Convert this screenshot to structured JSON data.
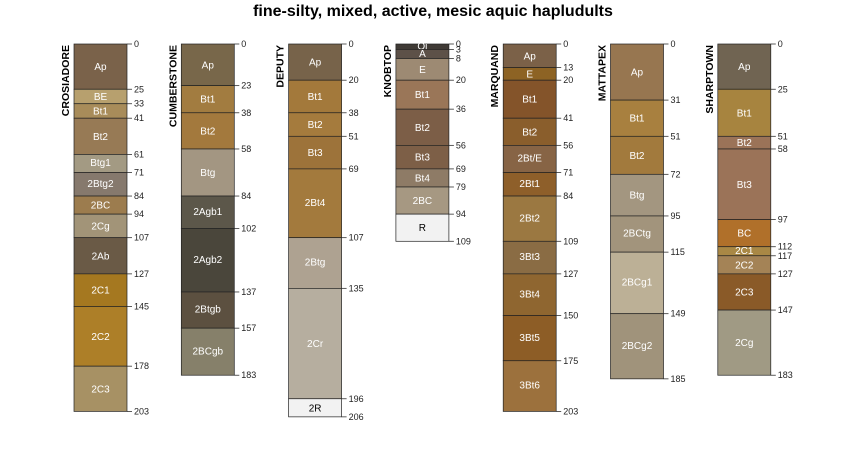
{
  "title": "fine-silty, mixed, active, mesic aquic hapludults",
  "chart_data": {
    "type": "soil-profile-sketch",
    "title": "fine-silty, mixed, active, mesic aquic hapludults",
    "depth_units": "cm",
    "profiles": [
      {
        "name": "CROSIADORE",
        "horizons": [
          {
            "name": "Ap",
            "top": 0,
            "bottom": 25,
            "color": "#7a624a"
          },
          {
            "name": "BE",
            "top": 25,
            "bottom": 33,
            "color": "#b7a06e"
          },
          {
            "name": "Bt1",
            "top": 33,
            "bottom": 41,
            "color": "#a88c5a"
          },
          {
            "name": "Bt2",
            "top": 41,
            "bottom": 61,
            "color": "#977a55"
          },
          {
            "name": "Btg1",
            "top": 61,
            "bottom": 71,
            "color": "#a39a83"
          },
          {
            "name": "2Btg2",
            "top": 71,
            "bottom": 84,
            "color": "#86796d"
          },
          {
            "name": "2BC",
            "top": 84,
            "bottom": 94,
            "color": "#9c7c4e"
          },
          {
            "name": "2Cg",
            "top": 94,
            "bottom": 107,
            "color": "#a29478"
          },
          {
            "name": "2Ab",
            "top": 107,
            "bottom": 127,
            "color": "#6a5a46"
          },
          {
            "name": "2C1",
            "top": 127,
            "bottom": 145,
            "color": "#a57820"
          },
          {
            "name": "2C2",
            "top": 145,
            "bottom": 178,
            "color": "#ad7f28"
          },
          {
            "name": "2C3",
            "top": 178,
            "bottom": 203,
            "color": "#a79164"
          }
        ]
      },
      {
        "name": "CUMBERSTONE",
        "horizons": [
          {
            "name": "Ap",
            "top": 0,
            "bottom": 23,
            "color": "#78674a"
          },
          {
            "name": "Bt1",
            "top": 23,
            "bottom": 38,
            "color": "#a27c40"
          },
          {
            "name": "Bt2",
            "top": 38,
            "bottom": 58,
            "color": "#a3793d"
          },
          {
            "name": "Btg",
            "top": 58,
            "bottom": 84,
            "color": "#a39682"
          },
          {
            "name": "2Agb1",
            "top": 84,
            "bottom": 102,
            "color": "#5c574a"
          },
          {
            "name": "2Agb2",
            "top": 102,
            "bottom": 137,
            "color": "#4a463b"
          },
          {
            "name": "2Btgb",
            "top": 137,
            "bottom": 157,
            "color": "#5c5040"
          },
          {
            "name": "2BCgb",
            "top": 157,
            "bottom": 183,
            "color": "#86806a"
          }
        ]
      },
      {
        "name": "DEPUTY",
        "horizons": [
          {
            "name": "Ap",
            "top": 0,
            "bottom": 20,
            "color": "#77634a"
          },
          {
            "name": "Bt1",
            "top": 20,
            "bottom": 38,
            "color": "#a3793b"
          },
          {
            "name": "Bt2",
            "top": 38,
            "bottom": 51,
            "color": "#a57b3d"
          },
          {
            "name": "Bt3",
            "top": 51,
            "bottom": 69,
            "color": "#9d733a"
          },
          {
            "name": "2Bt4",
            "top": 69,
            "bottom": 107,
            "color": "#a37a3d"
          },
          {
            "name": "2Btg",
            "top": 107,
            "bottom": 135,
            "color": "#aea291"
          },
          {
            "name": "2Cr",
            "top": 135,
            "bottom": 196,
            "color": "#b6ae9f"
          },
          {
            "name": "2R",
            "top": 196,
            "bottom": 206,
            "color": "#f2f2f2"
          }
        ]
      },
      {
        "name": "KNOBTOP",
        "horizons": [
          {
            "name": "Oi",
            "top": 0,
            "bottom": 3,
            "color": "#3f3a35"
          },
          {
            "name": "A",
            "top": 3,
            "bottom": 8,
            "color": "#5d5148"
          },
          {
            "name": "E",
            "top": 8,
            "bottom": 20,
            "color": "#9d8a73"
          },
          {
            "name": "Bt1",
            "top": 20,
            "bottom": 36,
            "color": "#9a7658"
          },
          {
            "name": "Bt2",
            "top": 36,
            "bottom": 56,
            "color": "#7c5e47"
          },
          {
            "name": "Bt3",
            "top": 56,
            "bottom": 69,
            "color": "#7d5f47"
          },
          {
            "name": "Bt4",
            "top": 69,
            "bottom": 79,
            "color": "#8e7b66"
          },
          {
            "name": "2BC",
            "top": 79,
            "bottom": 94,
            "color": "#a69882"
          },
          {
            "name": "R",
            "top": 94,
            "bottom": 109,
            "color": "#f2f2f2"
          }
        ]
      },
      {
        "name": "MARQUAND",
        "horizons": [
          {
            "name": "Ap",
            "top": 0,
            "bottom": 13,
            "color": "#7b6148"
          },
          {
            "name": "E",
            "top": 13,
            "bottom": 20,
            "color": "#8d6324"
          },
          {
            "name": "Bt1",
            "top": 20,
            "bottom": 41,
            "color": "#84542a"
          },
          {
            "name": "Bt2",
            "top": 41,
            "bottom": 56,
            "color": "#8a5e2c"
          },
          {
            "name": "2Bt/E",
            "top": 56,
            "bottom": 71,
            "color": "#876445"
          },
          {
            "name": "2Bt1",
            "top": 71,
            "bottom": 84,
            "color": "#8e5f2a"
          },
          {
            "name": "2Bt2",
            "top": 84,
            "bottom": 109,
            "color": "#9b7841"
          },
          {
            "name": "3Bt3",
            "top": 109,
            "bottom": 127,
            "color": "#8a6c44"
          },
          {
            "name": "3Bt4",
            "top": 127,
            "bottom": 150,
            "color": "#8f6630"
          },
          {
            "name": "3Bt5",
            "top": 150,
            "bottom": 175,
            "color": "#8d5d26"
          },
          {
            "name": "3Bt6",
            "top": 175,
            "bottom": 203,
            "color": "#9c713d"
          }
        ]
      },
      {
        "name": "MATTAPEX",
        "horizons": [
          {
            "name": "Ap",
            "top": 0,
            "bottom": 31,
            "color": "#977650"
          },
          {
            "name": "Bt1",
            "top": 31,
            "bottom": 51,
            "color": "#a8803f"
          },
          {
            "name": "Bt2",
            "top": 51,
            "bottom": 72,
            "color": "#a27a3d"
          },
          {
            "name": "Btg",
            "top": 72,
            "bottom": 95,
            "color": "#a39680"
          },
          {
            "name": "2BCtg",
            "top": 95,
            "bottom": 115,
            "color": "#a2947c"
          },
          {
            "name": "2BCg1",
            "top": 115,
            "bottom": 149,
            "color": "#bcb096"
          },
          {
            "name": "2BCg2",
            "top": 149,
            "bottom": 185,
            "color": "#a0937b"
          }
        ]
      },
      {
        "name": "SHARPTOWN",
        "horizons": [
          {
            "name": "Ap",
            "top": 0,
            "bottom": 25,
            "color": "#706452"
          },
          {
            "name": "Bt1",
            "top": 25,
            "bottom": 51,
            "color": "#a7843f"
          },
          {
            "name": "Bt2",
            "top": 51,
            "bottom": 58,
            "color": "#9b7358"
          },
          {
            "name": "Bt3",
            "top": 58,
            "bottom": 97,
            "color": "#9b7358"
          },
          {
            "name": "BC",
            "top": 97,
            "bottom": 112,
            "color": "#b0702a"
          },
          {
            "name": "2C1",
            "top": 112,
            "bottom": 117,
            "color": "#a98845"
          },
          {
            "name": "2C2",
            "top": 117,
            "bottom": 127,
            "color": "#a48356"
          },
          {
            "name": "2C3",
            "top": 127,
            "bottom": 147,
            "color": "#8a5a28"
          },
          {
            "name": "2Cg",
            "top": 147,
            "bottom": 183,
            "color": "#a09a84"
          }
        ]
      }
    ]
  }
}
